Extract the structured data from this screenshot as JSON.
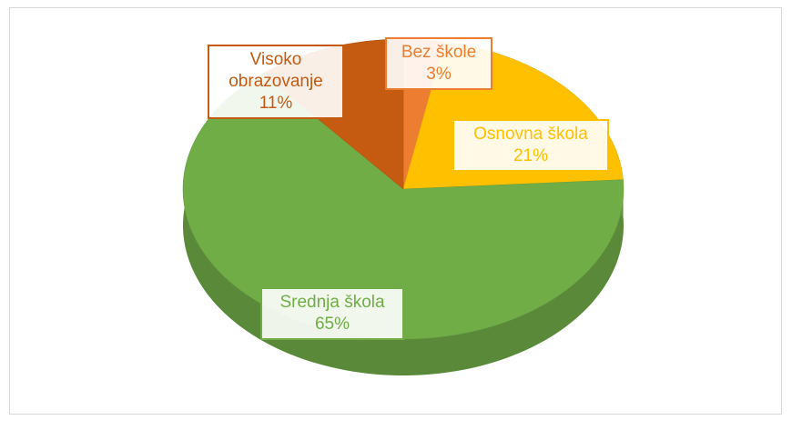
{
  "chart_data": {
    "type": "pie",
    "categories": [
      "Bez škole",
      "Osnovna škola",
      "Srednja škola",
      "Visoko obrazovanje"
    ],
    "values": [
      3,
      21,
      65,
      11
    ],
    "value_labels": [
      "3%",
      "21%",
      "65%",
      "11%"
    ],
    "colors": [
      "#ed7d31",
      "#ffc000",
      "#70ad47",
      "#c55a11"
    ]
  }
}
